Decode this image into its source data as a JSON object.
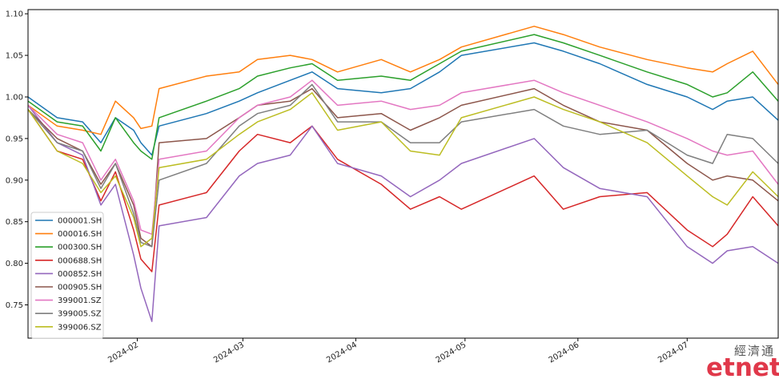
{
  "watermark": {
    "chinese": "經濟通",
    "logo": "etnet"
  },
  "chart_data": {
    "type": "line",
    "title": "",
    "xlabel": "",
    "ylabel": "",
    "grid": false,
    "legend_position": "lower-left",
    "x_range": [
      "2024-01-02",
      "2024-07-26"
    ],
    "ylim": [
      0.71,
      1.105
    ],
    "y_ticks": [
      "0.75",
      "0.80",
      "0.85",
      "0.90",
      "0.95",
      "1.00",
      "1.05",
      "1.10"
    ],
    "x_ticks": [
      {
        "date": "2024-02-01",
        "label": "2024-02"
      },
      {
        "date": "2024-03-01",
        "label": "2024-03"
      },
      {
        "date": "2024-04-01",
        "label": "2024-04"
      },
      {
        "date": "2024-05-01",
        "label": "2024-05"
      },
      {
        "date": "2024-06-01",
        "label": "2024-06"
      },
      {
        "date": "2024-07-01",
        "label": "2024-07"
      }
    ],
    "series": [
      {
        "name": "000001.SH",
        "color": "#1f77b4",
        "points": [
          [
            "2024-01-02",
            1.0
          ],
          [
            "2024-01-10",
            0.975
          ],
          [
            "2024-01-17",
            0.97
          ],
          [
            "2024-01-22",
            0.945
          ],
          [
            "2024-01-26",
            0.975
          ],
          [
            "2024-01-31",
            0.96
          ],
          [
            "2024-02-02",
            0.945
          ],
          [
            "2024-02-05",
            0.93
          ],
          [
            "2024-02-07",
            0.965
          ],
          [
            "2024-02-20",
            0.98
          ],
          [
            "2024-02-29",
            0.995
          ],
          [
            "2024-03-05",
            1.005
          ],
          [
            "2024-03-14",
            1.02
          ],
          [
            "2024-03-20",
            1.03
          ],
          [
            "2024-03-27",
            1.01
          ],
          [
            "2024-04-08",
            1.005
          ],
          [
            "2024-04-16",
            1.01
          ],
          [
            "2024-04-24",
            1.03
          ],
          [
            "2024-04-30",
            1.05
          ],
          [
            "2024-05-20",
            1.065
          ],
          [
            "2024-05-28",
            1.055
          ],
          [
            "2024-06-07",
            1.04
          ],
          [
            "2024-06-20",
            1.015
          ],
          [
            "2024-07-01",
            1.0
          ],
          [
            "2024-07-08",
            0.985
          ],
          [
            "2024-07-12",
            0.995
          ],
          [
            "2024-07-19",
            1.0
          ],
          [
            "2024-07-26",
            0.972
          ]
        ]
      },
      {
        "name": "000016.SH",
        "color": "#ff7f0e",
        "points": [
          [
            "2024-01-02",
            0.99
          ],
          [
            "2024-01-10",
            0.965
          ],
          [
            "2024-01-17",
            0.96
          ],
          [
            "2024-01-22",
            0.955
          ],
          [
            "2024-01-26",
            0.995
          ],
          [
            "2024-01-31",
            0.975
          ],
          [
            "2024-02-02",
            0.962
          ],
          [
            "2024-02-05",
            0.965
          ],
          [
            "2024-02-07",
            1.01
          ],
          [
            "2024-02-20",
            1.025
          ],
          [
            "2024-02-29",
            1.03
          ],
          [
            "2024-03-05",
            1.045
          ],
          [
            "2024-03-14",
            1.05
          ],
          [
            "2024-03-20",
            1.045
          ],
          [
            "2024-03-27",
            1.03
          ],
          [
            "2024-04-08",
            1.045
          ],
          [
            "2024-04-16",
            1.03
          ],
          [
            "2024-04-24",
            1.045
          ],
          [
            "2024-04-30",
            1.06
          ],
          [
            "2024-05-20",
            1.085
          ],
          [
            "2024-05-28",
            1.075
          ],
          [
            "2024-06-07",
            1.06
          ],
          [
            "2024-06-20",
            1.045
          ],
          [
            "2024-07-01",
            1.035
          ],
          [
            "2024-07-08",
            1.03
          ],
          [
            "2024-07-12",
            1.04
          ],
          [
            "2024-07-19",
            1.055
          ],
          [
            "2024-07-26",
            1.015
          ]
        ]
      },
      {
        "name": "000300.SH",
        "color": "#2ca02c",
        "points": [
          [
            "2024-01-02",
            0.995
          ],
          [
            "2024-01-10",
            0.97
          ],
          [
            "2024-01-17",
            0.965
          ],
          [
            "2024-01-22",
            0.935
          ],
          [
            "2024-01-26",
            0.975
          ],
          [
            "2024-01-31",
            0.945
          ],
          [
            "2024-02-02",
            0.935
          ],
          [
            "2024-02-05",
            0.925
          ],
          [
            "2024-02-07",
            0.975
          ],
          [
            "2024-02-20",
            0.995
          ],
          [
            "2024-02-29",
            1.01
          ],
          [
            "2024-03-05",
            1.025
          ],
          [
            "2024-03-14",
            1.035
          ],
          [
            "2024-03-20",
            1.04
          ],
          [
            "2024-03-27",
            1.02
          ],
          [
            "2024-04-08",
            1.025
          ],
          [
            "2024-04-16",
            1.02
          ],
          [
            "2024-04-24",
            1.04
          ],
          [
            "2024-04-30",
            1.055
          ],
          [
            "2024-05-20",
            1.075
          ],
          [
            "2024-05-28",
            1.065
          ],
          [
            "2024-06-07",
            1.05
          ],
          [
            "2024-06-20",
            1.03
          ],
          [
            "2024-07-01",
            1.015
          ],
          [
            "2024-07-08",
            1.0
          ],
          [
            "2024-07-12",
            1.005
          ],
          [
            "2024-07-19",
            1.03
          ],
          [
            "2024-07-26",
            0.995
          ]
        ]
      },
      {
        "name": "000688.SH",
        "color": "#d62728",
        "points": [
          [
            "2024-01-02",
            0.985
          ],
          [
            "2024-01-10",
            0.935
          ],
          [
            "2024-01-17",
            0.925
          ],
          [
            "2024-01-22",
            0.875
          ],
          [
            "2024-01-26",
            0.91
          ],
          [
            "2024-01-31",
            0.84
          ],
          [
            "2024-02-02",
            0.805
          ],
          [
            "2024-02-05",
            0.79
          ],
          [
            "2024-02-07",
            0.87
          ],
          [
            "2024-02-20",
            0.885
          ],
          [
            "2024-02-29",
            0.935
          ],
          [
            "2024-03-05",
            0.955
          ],
          [
            "2024-03-14",
            0.945
          ],
          [
            "2024-03-20",
            0.965
          ],
          [
            "2024-03-27",
            0.925
          ],
          [
            "2024-04-08",
            0.895
          ],
          [
            "2024-04-16",
            0.865
          ],
          [
            "2024-04-24",
            0.88
          ],
          [
            "2024-04-30",
            0.865
          ],
          [
            "2024-05-20",
            0.905
          ],
          [
            "2024-05-28",
            0.865
          ],
          [
            "2024-06-07",
            0.88
          ],
          [
            "2024-06-20",
            0.885
          ],
          [
            "2024-07-01",
            0.84
          ],
          [
            "2024-07-08",
            0.82
          ],
          [
            "2024-07-12",
            0.835
          ],
          [
            "2024-07-19",
            0.88
          ],
          [
            "2024-07-26",
            0.845
          ]
        ]
      },
      {
        "name": "000852.SH",
        "color": "#9467bd",
        "points": [
          [
            "2024-01-02",
            0.99
          ],
          [
            "2024-01-10",
            0.945
          ],
          [
            "2024-01-17",
            0.93
          ],
          [
            "2024-01-22",
            0.87
          ],
          [
            "2024-01-26",
            0.895
          ],
          [
            "2024-01-31",
            0.81
          ],
          [
            "2024-02-02",
            0.77
          ],
          [
            "2024-02-05",
            0.73
          ],
          [
            "2024-02-07",
            0.845
          ],
          [
            "2024-02-20",
            0.855
          ],
          [
            "2024-02-29",
            0.905
          ],
          [
            "2024-03-05",
            0.92
          ],
          [
            "2024-03-14",
            0.93
          ],
          [
            "2024-03-20",
            0.965
          ],
          [
            "2024-03-27",
            0.92
          ],
          [
            "2024-04-08",
            0.905
          ],
          [
            "2024-04-16",
            0.88
          ],
          [
            "2024-04-24",
            0.9
          ],
          [
            "2024-04-30",
            0.92
          ],
          [
            "2024-05-20",
            0.95
          ],
          [
            "2024-05-28",
            0.915
          ],
          [
            "2024-06-07",
            0.89
          ],
          [
            "2024-06-20",
            0.88
          ],
          [
            "2024-07-01",
            0.82
          ],
          [
            "2024-07-08",
            0.8
          ],
          [
            "2024-07-12",
            0.815
          ],
          [
            "2024-07-19",
            0.82
          ],
          [
            "2024-07-26",
            0.8
          ]
        ]
      },
      {
        "name": "000905.SH",
        "color": "#8c564b",
        "points": [
          [
            "2024-01-02",
            0.985
          ],
          [
            "2024-01-10",
            0.95
          ],
          [
            "2024-01-17",
            0.935
          ],
          [
            "2024-01-22",
            0.895
          ],
          [
            "2024-01-26",
            0.92
          ],
          [
            "2024-01-31",
            0.87
          ],
          [
            "2024-02-02",
            0.83
          ],
          [
            "2024-02-05",
            0.82
          ],
          [
            "2024-02-07",
            0.945
          ],
          [
            "2024-02-20",
            0.95
          ],
          [
            "2024-02-29",
            0.975
          ],
          [
            "2024-03-05",
            0.99
          ],
          [
            "2024-03-14",
            0.995
          ],
          [
            "2024-03-20",
            1.01
          ],
          [
            "2024-03-27",
            0.975
          ],
          [
            "2024-04-08",
            0.98
          ],
          [
            "2024-04-16",
            0.96
          ],
          [
            "2024-04-24",
            0.975
          ],
          [
            "2024-04-30",
            0.99
          ],
          [
            "2024-05-20",
            1.01
          ],
          [
            "2024-05-28",
            0.99
          ],
          [
            "2024-06-07",
            0.97
          ],
          [
            "2024-06-20",
            0.96
          ],
          [
            "2024-07-01",
            0.92
          ],
          [
            "2024-07-08",
            0.9
          ],
          [
            "2024-07-12",
            0.905
          ],
          [
            "2024-07-19",
            0.9
          ],
          [
            "2024-07-26",
            0.875
          ]
        ]
      },
      {
        "name": "399001.SZ",
        "color": "#e377c2",
        "points": [
          [
            "2024-01-02",
            0.99
          ],
          [
            "2024-01-10",
            0.955
          ],
          [
            "2024-01-17",
            0.945
          ],
          [
            "2024-01-22",
            0.9
          ],
          [
            "2024-01-26",
            0.925
          ],
          [
            "2024-01-31",
            0.875
          ],
          [
            "2024-02-02",
            0.84
          ],
          [
            "2024-02-05",
            0.835
          ],
          [
            "2024-02-07",
            0.925
          ],
          [
            "2024-02-20",
            0.935
          ],
          [
            "2024-02-29",
            0.975
          ],
          [
            "2024-03-05",
            0.99
          ],
          [
            "2024-03-14",
            1.0
          ],
          [
            "2024-03-20",
            1.02
          ],
          [
            "2024-03-27",
            0.99
          ],
          [
            "2024-04-08",
            0.995
          ],
          [
            "2024-04-16",
            0.985
          ],
          [
            "2024-04-24",
            0.99
          ],
          [
            "2024-04-30",
            1.005
          ],
          [
            "2024-05-20",
            1.02
          ],
          [
            "2024-05-28",
            1.005
          ],
          [
            "2024-06-07",
            0.99
          ],
          [
            "2024-06-20",
            0.97
          ],
          [
            "2024-07-01",
            0.95
          ],
          [
            "2024-07-08",
            0.935
          ],
          [
            "2024-07-12",
            0.93
          ],
          [
            "2024-07-19",
            0.935
          ],
          [
            "2024-07-26",
            0.895
          ]
        ]
      },
      {
        "name": "399005.SZ",
        "color": "#7f7f7f",
        "points": [
          [
            "2024-01-02",
            0.985
          ],
          [
            "2024-01-10",
            0.945
          ],
          [
            "2024-01-17",
            0.935
          ],
          [
            "2024-01-22",
            0.89
          ],
          [
            "2024-01-26",
            0.92
          ],
          [
            "2024-01-31",
            0.86
          ],
          [
            "2024-02-02",
            0.825
          ],
          [
            "2024-02-05",
            0.82
          ],
          [
            "2024-02-07",
            0.9
          ],
          [
            "2024-02-20",
            0.92
          ],
          [
            "2024-02-29",
            0.965
          ],
          [
            "2024-03-05",
            0.98
          ],
          [
            "2024-03-14",
            0.99
          ],
          [
            "2024-03-20",
            1.015
          ],
          [
            "2024-03-27",
            0.97
          ],
          [
            "2024-04-08",
            0.97
          ],
          [
            "2024-04-16",
            0.945
          ],
          [
            "2024-04-24",
            0.945
          ],
          [
            "2024-04-30",
            0.97
          ],
          [
            "2024-05-20",
            0.985
          ],
          [
            "2024-05-28",
            0.965
          ],
          [
            "2024-06-07",
            0.955
          ],
          [
            "2024-06-20",
            0.96
          ],
          [
            "2024-07-01",
            0.93
          ],
          [
            "2024-07-08",
            0.92
          ],
          [
            "2024-07-12",
            0.955
          ],
          [
            "2024-07-19",
            0.95
          ],
          [
            "2024-07-26",
            0.92
          ]
        ]
      },
      {
        "name": "399006.SZ",
        "color": "#bcbd22",
        "points": [
          [
            "2024-01-02",
            0.985
          ],
          [
            "2024-01-10",
            0.935
          ],
          [
            "2024-01-17",
            0.92
          ],
          [
            "2024-01-22",
            0.885
          ],
          [
            "2024-01-26",
            0.905
          ],
          [
            "2024-01-31",
            0.855
          ],
          [
            "2024-02-02",
            0.82
          ],
          [
            "2024-02-05",
            0.83
          ],
          [
            "2024-02-07",
            0.915
          ],
          [
            "2024-02-20",
            0.925
          ],
          [
            "2024-02-29",
            0.955
          ],
          [
            "2024-03-05",
            0.97
          ],
          [
            "2024-03-14",
            0.985
          ],
          [
            "2024-03-20",
            1.005
          ],
          [
            "2024-03-27",
            0.96
          ],
          [
            "2024-04-08",
            0.97
          ],
          [
            "2024-04-16",
            0.935
          ],
          [
            "2024-04-24",
            0.93
          ],
          [
            "2024-04-30",
            0.975
          ],
          [
            "2024-05-20",
            1.0
          ],
          [
            "2024-05-28",
            0.985
          ],
          [
            "2024-06-07",
            0.97
          ],
          [
            "2024-06-20",
            0.945
          ],
          [
            "2024-07-01",
            0.905
          ],
          [
            "2024-07-08",
            0.88
          ],
          [
            "2024-07-12",
            0.87
          ],
          [
            "2024-07-19",
            0.91
          ],
          [
            "2024-07-26",
            0.88
          ]
        ]
      }
    ]
  }
}
